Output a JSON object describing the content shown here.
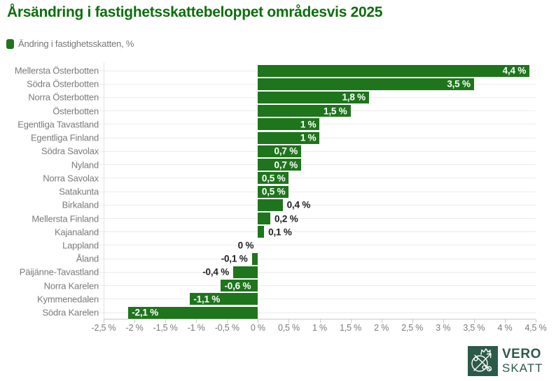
{
  "title": "Årsändring i fastighetsskattebeloppet områdesvis 2025",
  "legend": {
    "label": "Ändring i fastighetsskatten, %"
  },
  "colors": {
    "title_green": "#0d6e0d",
    "bar_green": "#1e751c",
    "text_gray": "#7a7a7a",
    "value_dark": "#1f1f1f",
    "gridline": "#ececec",
    "axis": "#c9c9c9",
    "logo_green": "#2b5a49"
  },
  "chart_data": {
    "type": "bar",
    "orientation": "horizontal",
    "title": "Årsändring i fastighetsskattebeloppet områdesvis 2025",
    "series_name": "Ändring i fastighetsskatten, %",
    "categories": [
      "Mellersta Österbotten",
      "Södra Österbotten",
      "Norra Österbotten",
      "Österbotten",
      "Egentliga Tavastland",
      "Egentliga Finland",
      "Södra Savolax",
      "Nyland",
      "Norra Savolax",
      "Satakunta",
      "Birkaland",
      "Mellersta Finland",
      "Kajanaland",
      "Lappland",
      "Åland",
      "Päijänne-Tavastland",
      "Norra Karelen",
      "Kymmenedalen",
      "Södra Karelen"
    ],
    "values": [
      4.4,
      3.5,
      1.8,
      1.5,
      1,
      1,
      0.7,
      0.7,
      0.5,
      0.5,
      0.4,
      0.2,
      0.1,
      0,
      -0.1,
      -0.4,
      -0.6,
      -1.1,
      -2.1
    ],
    "value_labels": [
      "4,4 %",
      "3,5 %",
      "1,8 %",
      "1,5 %",
      "1 %",
      "1 %",
      "0,7 %",
      "0,7 %",
      "0,5 %",
      "0,5 %",
      "0,4 %",
      "0,2 %",
      "0,1 %",
      "0 %",
      "-0,1 %",
      "-0,4 %",
      "-0,6 %",
      "-1,1 %",
      "-2,1 %"
    ],
    "xlim": [
      -2.5,
      4.5
    ],
    "x_tick_values": [
      -2.5,
      -2,
      -1.5,
      -1,
      -0.5,
      0,
      0.5,
      1,
      1.5,
      2,
      2.5,
      3,
      3.5,
      4,
      4.5
    ],
    "x_tick_labels": [
      "-2,5 %",
      "-2 %",
      "-1,5 %",
      "-1 %",
      "-0,5 %",
      "0 %",
      "0,5 %",
      "1 %",
      "1,5 %",
      "2 %",
      "2,5 %",
      "3 %",
      "3,5 %",
      "4 %",
      "4,5 %"
    ],
    "grid": true,
    "legend_position": "top-left"
  },
  "logo": {
    "line1": "VERO",
    "line2": "SKATT"
  }
}
